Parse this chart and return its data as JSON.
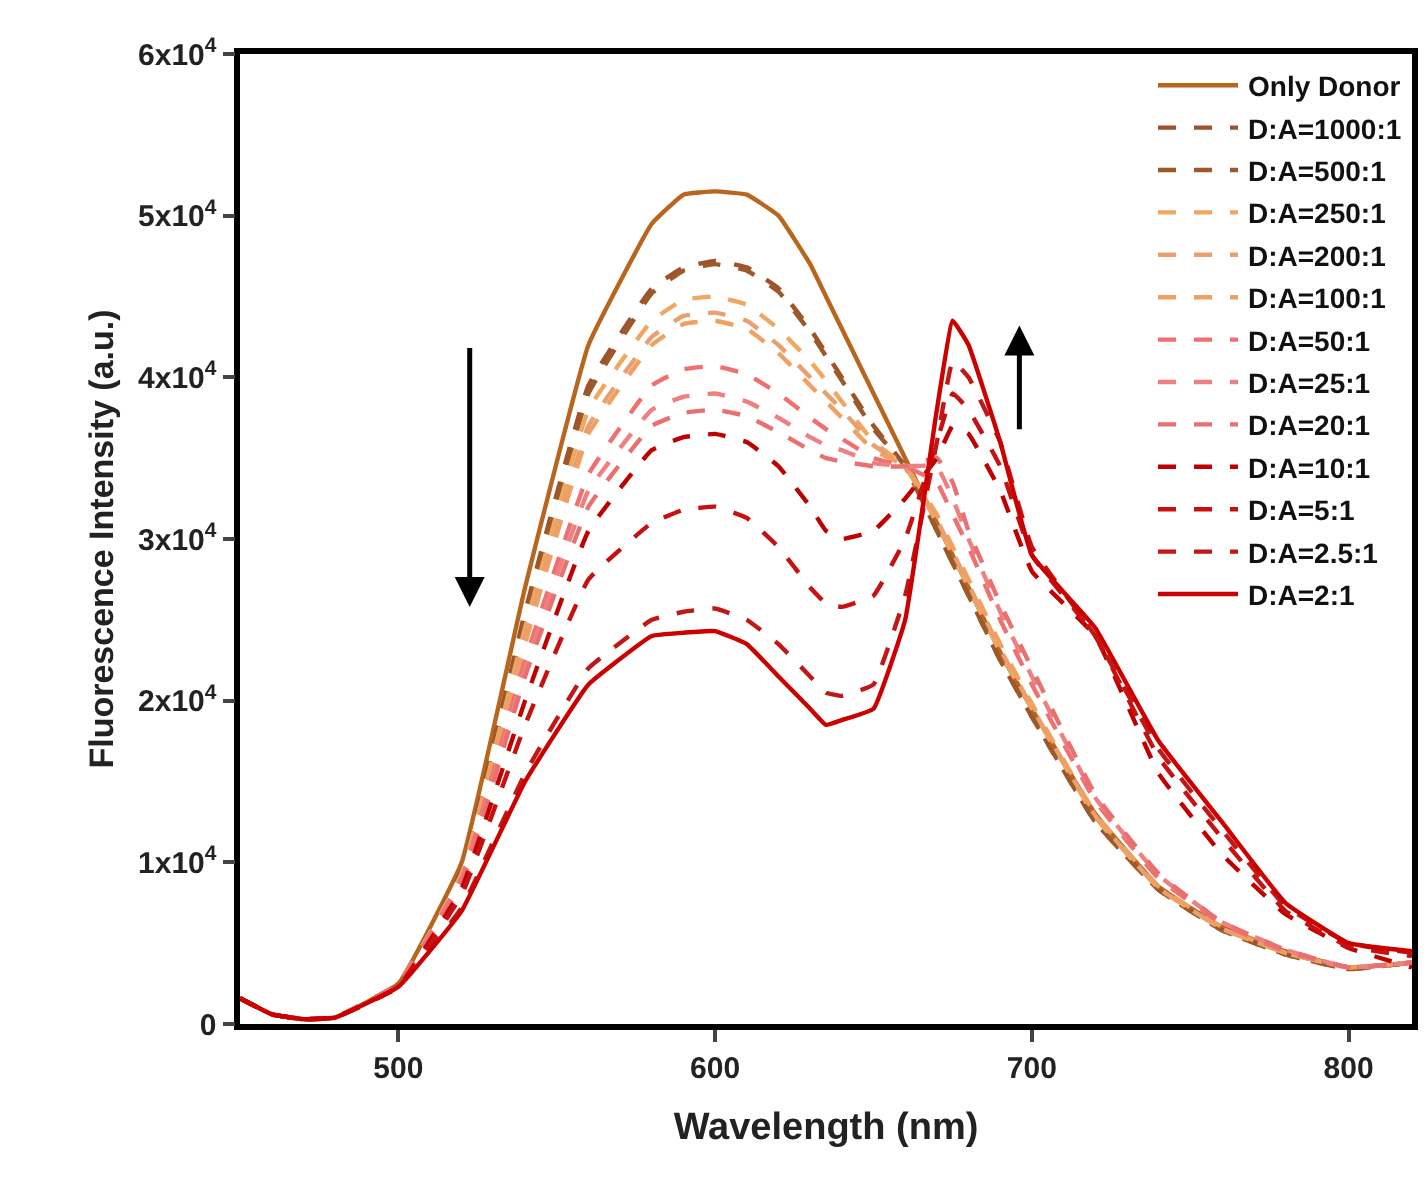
{
  "chart_data": {
    "type": "line",
    "xlabel": "Wavelength (nm)",
    "ylabel": "Fluorescence Intensity (a.u.)",
    "x": [
      450,
      460,
      470,
      480,
      500,
      520,
      540,
      560,
      580,
      590,
      600,
      610,
      620,
      630,
      635,
      640,
      650,
      660,
      670,
      675,
      680,
      690,
      700,
      720,
      740,
      760,
      780,
      800,
      820
    ],
    "xlim": [
      450,
      820
    ],
    "xticks": [
      500,
      600,
      700,
      800
    ],
    "ylim": [
      0,
      60000
    ],
    "yticks": [
      0,
      {
        "value": 10000,
        "label": "1x10$^{4}$"
      },
      {
        "value": 20000,
        "label": "2x10$^{4}$"
      },
      {
        "value": 30000,
        "label": "3x10$^{4}$"
      },
      {
        "value": 40000,
        "label": "4x10$^{4}$"
      },
      {
        "value": 50000,
        "label": "5x10$^{4}$"
      },
      {
        "value": 60000,
        "label": "6x10$^{4}$"
      }
    ],
    "legend": "top right",
    "marker": "none",
    "series": [
      {
        "name": "Only Donor",
        "color": "#b8651e",
        "line_style": "solid",
        "values": [
          1600,
          600,
          300,
          400,
          2500,
          10000,
          27000,
          42000,
          49500,
          51300,
          51500,
          51300,
          50000,
          47000,
          45000,
          43000,
          39000,
          35000,
          31000,
          29000,
          27000,
          23000,
          19500,
          13000,
          8500,
          6000,
          4500,
          3500,
          3800
        ]
      },
      {
        "name": "D:A=1000:1",
        "color": "#a0522d",
        "line_style": "dashed",
        "values": [
          1600,
          600,
          300,
          400,
          2500,
          9500,
          25500,
          39500,
          45500,
          46800,
          47200,
          46800,
          45500,
          43000,
          41500,
          40000,
          37000,
          34500,
          30500,
          28500,
          26500,
          22500,
          19000,
          12500,
          8300,
          5800,
          4300,
          3400,
          3800
        ]
      },
      {
        "name": "D:A=500:1",
        "color": "#9c5a2a",
        "line_style": "dashed",
        "values": [
          1600,
          600,
          300,
          400,
          2500,
          9500,
          25000,
          39000,
          45200,
          46600,
          47000,
          46600,
          45300,
          42800,
          41300,
          39800,
          36800,
          34500,
          30500,
          28500,
          26500,
          22500,
          19000,
          12500,
          8300,
          5800,
          4300,
          3400,
          3800
        ]
      },
      {
        "name": "D:A=250:1",
        "color": "#f0a860",
        "line_style": "dashed",
        "values": [
          1600,
          600,
          300,
          400,
          2500,
          9300,
          24500,
          38000,
          43500,
          44800,
          45000,
          44500,
          43000,
          41000,
          39800,
          38500,
          36000,
          34500,
          31000,
          29000,
          27000,
          23000,
          19500,
          12800,
          8400,
          5900,
          4400,
          3500,
          3800
        ]
      },
      {
        "name": "D:A=200:1",
        "color": "#e8a070",
        "line_style": "dashed",
        "values": [
          1600,
          600,
          300,
          400,
          2500,
          9200,
          24000,
          37000,
          42500,
          43800,
          44000,
          43500,
          42000,
          40000,
          39000,
          38000,
          35800,
          34500,
          31200,
          29200,
          27200,
          23200,
          19600,
          12900,
          8400,
          5900,
          4400,
          3500,
          3800
        ]
      },
      {
        "name": "D:A=100:1",
        "color": "#f0a060",
        "line_style": "dashed",
        "values": [
          1600,
          600,
          300,
          400,
          2500,
          9100,
          23500,
          36500,
          42000,
          43300,
          43500,
          43000,
          41500,
          39500,
          38500,
          37500,
          35500,
          34500,
          31500,
          29500,
          27500,
          23500,
          19800,
          13000,
          8500,
          6000,
          4400,
          3500,
          3800
        ]
      },
      {
        "name": "D:A=50:1",
        "color": "#f07070",
        "line_style": "dashed",
        "values": [
          1600,
          600,
          300,
          400,
          2500,
          9000,
          22500,
          34000,
          39500,
          40500,
          40700,
          40200,
          39000,
          37500,
          36800,
          36200,
          35000,
          34500,
          33500,
          31500,
          29500,
          25000,
          21000,
          13800,
          9000,
          6200,
          4500,
          3500,
          3800
        ]
      },
      {
        "name": "D:A=25:1",
        "color": "#f08080",
        "line_style": "dashed",
        "values": [
          1600,
          600,
          300,
          400,
          2500,
          8800,
          22000,
          33000,
          38000,
          38800,
          39000,
          38500,
          37500,
          36300,
          35800,
          35500,
          34700,
          34500,
          34500,
          32500,
          30000,
          25500,
          21500,
          14000,
          9200,
          6300,
          4600,
          3500,
          3800
        ]
      },
      {
        "name": "D:A=20:1",
        "color": "#e87070",
        "line_style": "dashed",
        "values": [
          1600,
          600,
          300,
          400,
          2500,
          8700,
          21500,
          32000,
          37000,
          37800,
          38000,
          37600,
          36600,
          35500,
          35000,
          34800,
          34500,
          34500,
          35000,
          33500,
          30500,
          26000,
          22000,
          14200,
          9300,
          6300,
          4600,
          3500,
          3800
        ]
      },
      {
        "name": "D:A=10:1",
        "color": "#c00000",
        "line_style": "dashed",
        "values": [
          1600,
          600,
          300,
          400,
          2300,
          8400,
          20000,
          30500,
          35500,
          36300,
          36500,
          36000,
          34500,
          32000,
          30500,
          30000,
          30500,
          32500,
          35000,
          37000,
          36500,
          33000,
          28000,
          24000,
          15500,
          10500,
          6800,
          4700,
          3500
        ]
      },
      {
        "name": "D:A=5:1",
        "color": "#c81010",
        "line_style": "dashed",
        "values": [
          1600,
          600,
          300,
          400,
          2300,
          8000,
          18500,
          27500,
          31000,
          31800,
          32000,
          31300,
          29500,
          27000,
          26000,
          25800,
          26500,
          30000,
          36000,
          39000,
          38000,
          34500,
          29000,
          24000,
          16500,
          11500,
          7000,
          4800,
          4200
        ]
      },
      {
        "name": "D:A=2.5:1",
        "color": "#c01818",
        "line_style": "dashed",
        "values": [
          1600,
          600,
          300,
          400,
          2300,
          7200,
          15500,
          22000,
          25000,
          25500,
          25700,
          25000,
          23500,
          21500,
          20500,
          20300,
          21000,
          26500,
          36000,
          41000,
          40000,
          36000,
          29500,
          24000,
          17000,
          12000,
          7300,
          5000,
          4400
        ]
      },
      {
        "name": "D:A=2:1",
        "color": "#cc0000",
        "line_style": "solid",
        "values": [
          1600,
          600,
          300,
          400,
          2300,
          7000,
          15000,
          21000,
          24000,
          24200,
          24300,
          23500,
          21500,
          19500,
          18500,
          18800,
          19500,
          25000,
          38000,
          43500,
          42000,
          36000,
          29000,
          24500,
          17500,
          12500,
          7500,
          5000,
          4500
        ]
      }
    ]
  }
}
